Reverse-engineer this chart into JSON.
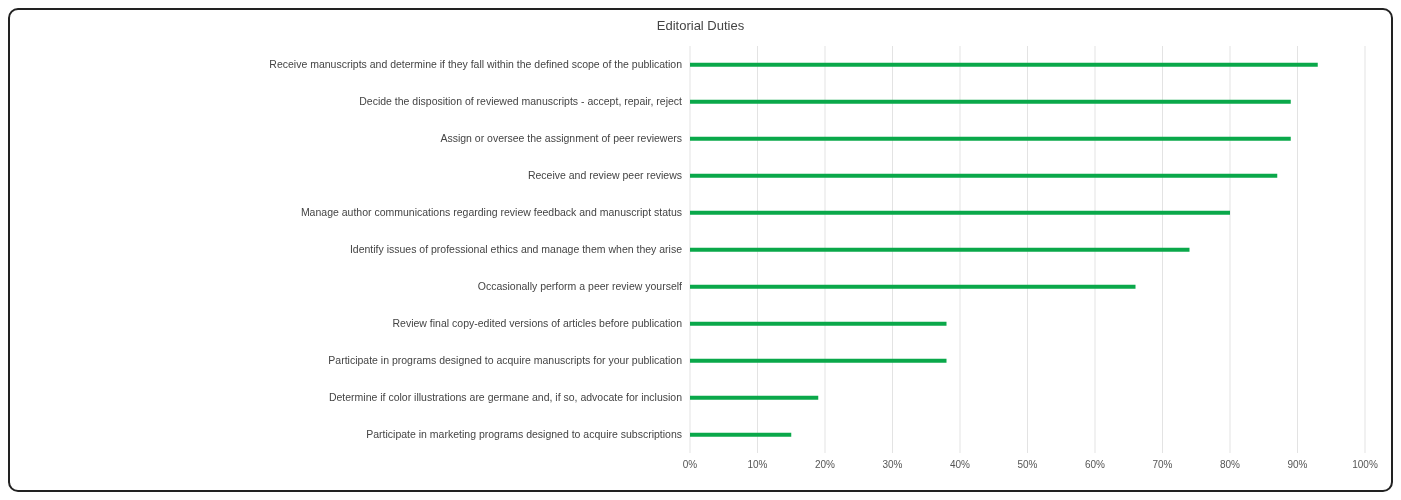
{
  "chart_data": {
    "type": "bar",
    "title": "Editorial Duties",
    "orientation": "horizontal",
    "categories": [
      "Receive manuscripts and determine if they fall within the defined scope of the publication",
      "Decide the disposition of reviewed manuscripts - accept, repair, reject",
      "Assign or oversee the assignment of peer reviewers",
      "Receive and review peer reviews",
      "Manage author communications regarding review feedback and manuscript status",
      "Identify issues of professional ethics and manage them when they arise",
      "Occasionally perform a peer review yourself",
      "Review final copy-edited versions of articles before publication",
      "Participate in programs designed to acquire manuscripts for your publication",
      "Determine if color illustrations are germane and, if so, advocate for inclusion",
      "Participate in marketing programs designed to acquire subscriptions"
    ],
    "values": [
      93,
      89,
      89,
      87,
      80,
      74,
      66,
      38,
      38,
      19,
      15
    ],
    "color": "#0aa84a",
    "xlim": [
      0,
      100
    ],
    "xticks": [
      {
        "value": 0,
        "label": "0%"
      },
      {
        "value": 10,
        "label": "10%"
      },
      {
        "value": 20,
        "label": "20%"
      },
      {
        "value": 30,
        "label": "30%"
      },
      {
        "value": 40,
        "label": "40%"
      },
      {
        "value": 50,
        "label": "50%"
      },
      {
        "value": 60,
        "label": "60%"
      },
      {
        "value": 70,
        "label": "70%"
      },
      {
        "value": 80,
        "label": "80%"
      },
      {
        "value": 90,
        "label": "90%"
      },
      {
        "value": 100,
        "label": "100%"
      }
    ],
    "grid": "x"
  }
}
